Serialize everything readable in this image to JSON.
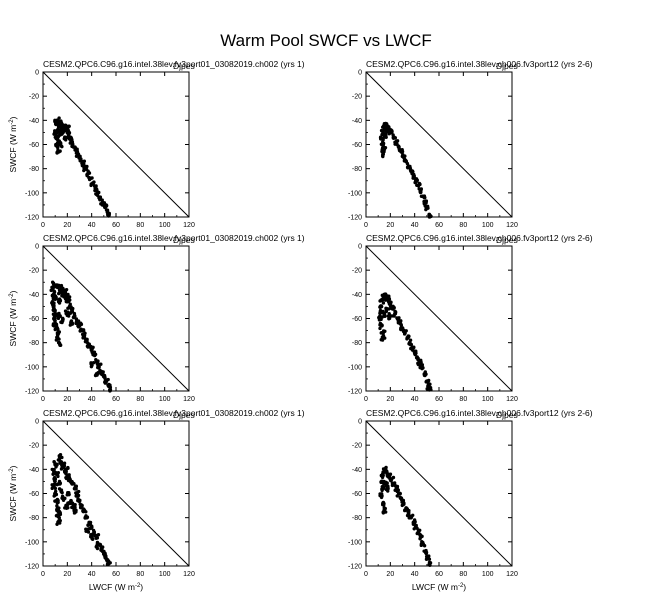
{
  "title": "Warm Pool SWCF vs LWCF",
  "axes": {
    "xlabel": "LWCF (W m",
    "xlabel_sup": "-2",
    "xlabel_end": ")",
    "ylabel": "SWCF (W m",
    "ylabel_sup": "-2",
    "ylabel_end": ")",
    "xticks": [
      "0",
      "20",
      "40",
      "60",
      "80",
      "100",
      "120"
    ],
    "yticks": [
      "0",
      "-20",
      "-40",
      "-60",
      "-80",
      "-100",
      "-120"
    ]
  },
  "chart_data": [
    {
      "type": "scatter",
      "title": "CESM2.QPC6.C96.g16.intel.38lev.fv3port01_03082019.ch002 (yrs 1)",
      "overlap_label": "Djpes",
      "xlim": [
        0,
        120
      ],
      "ylim": [
        -120,
        0
      ],
      "cluster": "c1"
    },
    {
      "type": "scatter",
      "title": "CESM2.QPC6.C96.g16.intel.38lev.ch006.fv3port12 (yrs 2-6)",
      "overlap_label": "Djpes",
      "xlim": [
        0,
        120
      ],
      "ylim": [
        -120,
        0
      ],
      "cluster": "c2"
    },
    {
      "type": "scatter",
      "title": "CESM2.QPC6.C96.g16.intel.38lev.fv3port01_03082019.ch002 (yrs 1)",
      "overlap_label": "Djpes",
      "xlim": [
        0,
        120
      ],
      "ylim": [
        -120,
        0
      ],
      "cluster": "c3"
    },
    {
      "type": "scatter",
      "title": "CESM2.QPC6.C96.g16.intel.38lev.ch006.fv3port12 (yrs 2-6)",
      "overlap_label": "Djpes",
      "xlim": [
        0,
        120
      ],
      "ylim": [
        -120,
        0
      ],
      "cluster": "c4"
    },
    {
      "type": "scatter",
      "title": "CESM2.QPC6.C96.g16.intel.38lev.fv3port01_03082019.ch002 (yrs 1)",
      "overlap_label": "Djpes",
      "xlim": [
        0,
        120
      ],
      "ylim": [
        -120,
        0
      ],
      "cluster": "c5"
    },
    {
      "type": "scatter",
      "title": "CESM2.QPC6.C96.g16.intel.38lev.ch006.fv3port12 (yrs 2-6)",
      "overlap_label": "Djpes",
      "xlim": [
        0,
        120
      ],
      "ylim": [
        -120,
        0
      ],
      "cluster": "c6"
    }
  ],
  "clusters": {
    "c1": [
      [
        12,
        -40
      ],
      [
        11,
        -42
      ],
      [
        13,
        -44
      ],
      [
        12,
        -48
      ],
      [
        10,
        -50
      ],
      [
        11,
        -55
      ],
      [
        13,
        -58
      ],
      [
        12,
        -62
      ],
      [
        14,
        -60
      ],
      [
        15,
        -46
      ],
      [
        16,
        -44
      ],
      [
        17,
        -45
      ],
      [
        18,
        -48
      ],
      [
        19,
        -46
      ],
      [
        20,
        -50
      ],
      [
        21,
        -52
      ],
      [
        22,
        -55
      ],
      [
        24,
        -58
      ],
      [
        25,
        -62
      ],
      [
        27,
        -64
      ],
      [
        29,
        -68
      ],
      [
        31,
        -72
      ],
      [
        33,
        -76
      ],
      [
        35,
        -80
      ],
      [
        37,
        -84
      ],
      [
        39,
        -88
      ],
      [
        41,
        -92
      ],
      [
        43,
        -96
      ],
      [
        45,
        -100
      ],
      [
        47,
        -104
      ],
      [
        49,
        -108
      ],
      [
        51,
        -112
      ],
      [
        53,
        -116
      ],
      [
        54,
        -119
      ],
      [
        14,
        -52
      ],
      [
        13,
        -66
      ],
      [
        15,
        -42
      ],
      [
        16,
        -50
      ],
      [
        18,
        -54
      ],
      [
        20,
        -46
      ]
    ],
    "c2": [
      [
        14,
        -50
      ],
      [
        13,
        -55
      ],
      [
        14,
        -60
      ],
      [
        15,
        -64
      ],
      [
        14,
        -68
      ],
      [
        15,
        -46
      ],
      [
        16,
        -44
      ],
      [
        17,
        -45
      ],
      [
        19,
        -47
      ],
      [
        21,
        -50
      ],
      [
        23,
        -54
      ],
      [
        25,
        -58
      ],
      [
        27,
        -62
      ],
      [
        29,
        -66
      ],
      [
        31,
        -70
      ],
      [
        33,
        -74
      ],
      [
        35,
        -78
      ],
      [
        37,
        -82
      ],
      [
        39,
        -86
      ],
      [
        41,
        -90
      ],
      [
        43,
        -94
      ],
      [
        45,
        -98
      ],
      [
        47,
        -103
      ],
      [
        49,
        -108
      ],
      [
        50,
        -112
      ],
      [
        52,
        -118
      ],
      [
        16,
        -52
      ],
      [
        18,
        -49
      ],
      [
        14,
        -65
      ]
    ],
    "c3": [
      [
        9,
        -32
      ],
      [
        8,
        -36
      ],
      [
        9,
        -40
      ],
      [
        10,
        -44
      ],
      [
        8,
        -48
      ],
      [
        9,
        -52
      ],
      [
        10,
        -56
      ],
      [
        9,
        -60
      ],
      [
        10,
        -64
      ],
      [
        11,
        -68
      ],
      [
        12,
        -72
      ],
      [
        12,
        -76
      ],
      [
        13,
        -80
      ],
      [
        14,
        -38
      ],
      [
        15,
        -34
      ],
      [
        16,
        -36
      ],
      [
        17,
        -40
      ],
      [
        18,
        -38
      ],
      [
        19,
        -42
      ],
      [
        20,
        -46
      ],
      [
        21,
        -44
      ],
      [
        22,
        -50
      ],
      [
        24,
        -54
      ],
      [
        26,
        -58
      ],
      [
        28,
        -62
      ],
      [
        30,
        -66
      ],
      [
        32,
        -70
      ],
      [
        34,
        -74
      ],
      [
        36,
        -78
      ],
      [
        38,
        -82
      ],
      [
        40,
        -86
      ],
      [
        42,
        -90
      ],
      [
        44,
        -96
      ],
      [
        46,
        -100
      ],
      [
        48,
        -104
      ],
      [
        50,
        -108
      ],
      [
        52,
        -112
      ],
      [
        54,
        -116
      ],
      [
        55,
        -119
      ],
      [
        12,
        -34
      ],
      [
        13,
        -46
      ],
      [
        14,
        -58
      ],
      [
        16,
        -62
      ],
      [
        20,
        -56
      ],
      [
        24,
        -64
      ],
      [
        44,
        -106
      ],
      [
        40,
        -98
      ]
    ],
    "c4": [
      [
        13,
        -45
      ],
      [
        12,
        -50
      ],
      [
        13,
        -55
      ],
      [
        12,
        -60
      ],
      [
        13,
        -66
      ],
      [
        14,
        -72
      ],
      [
        14,
        -76
      ],
      [
        15,
        -42
      ],
      [
        16,
        -40
      ],
      [
        17,
        -44
      ],
      [
        18,
        -42
      ],
      [
        19,
        -46
      ],
      [
        20,
        -48
      ],
      [
        22,
        -52
      ],
      [
        24,
        -56
      ],
      [
        26,
        -60
      ],
      [
        28,
        -64
      ],
      [
        30,
        -68
      ],
      [
        32,
        -72
      ],
      [
        34,
        -76
      ],
      [
        36,
        -80
      ],
      [
        38,
        -84
      ],
      [
        40,
        -88
      ],
      [
        42,
        -92
      ],
      [
        44,
        -96
      ],
      [
        46,
        -100
      ],
      [
        48,
        -106
      ],
      [
        50,
        -112
      ],
      [
        51,
        -116
      ],
      [
        52,
        -119
      ],
      [
        15,
        -56
      ],
      [
        17,
        -52
      ],
      [
        20,
        -58
      ]
    ],
    "c5": [
      [
        10,
        -36
      ],
      [
        9,
        -42
      ],
      [
        10,
        -48
      ],
      [
        9,
        -54
      ],
      [
        10,
        -60
      ],
      [
        11,
        -66
      ],
      [
        12,
        -72
      ],
      [
        12,
        -78
      ],
      [
        13,
        -84
      ],
      [
        14,
        -30
      ],
      [
        15,
        -34
      ],
      [
        16,
        -38
      ],
      [
        17,
        -36
      ],
      [
        18,
        -42
      ],
      [
        19,
        -40
      ],
      [
        20,
        -46
      ],
      [
        22,
        -48
      ],
      [
        24,
        -52
      ],
      [
        26,
        -56
      ],
      [
        28,
        -60
      ],
      [
        30,
        -66
      ],
      [
        32,
        -70
      ],
      [
        34,
        -74
      ],
      [
        36,
        -80
      ],
      [
        38,
        -84
      ],
      [
        40,
        -88
      ],
      [
        42,
        -92
      ],
      [
        44,
        -96
      ],
      [
        46,
        -102
      ],
      [
        48,
        -106
      ],
      [
        50,
        -110
      ],
      [
        52,
        -114
      ],
      [
        54,
        -118
      ],
      [
        11,
        -44
      ],
      [
        13,
        -52
      ],
      [
        15,
        -58
      ],
      [
        17,
        -64
      ],
      [
        19,
        -70
      ],
      [
        21,
        -60
      ],
      [
        23,
        -66
      ],
      [
        25,
        -70
      ],
      [
        27,
        -74
      ],
      [
        36,
        -90
      ],
      [
        40,
        -96
      ],
      [
        44,
        -104
      ],
      [
        14,
        -76
      ]
    ],
    "c6": [
      [
        14,
        -45
      ],
      [
        13,
        -50
      ],
      [
        14,
        -56
      ],
      [
        13,
        -62
      ],
      [
        14,
        -68
      ],
      [
        15,
        -74
      ],
      [
        15,
        -42
      ],
      [
        16,
        -40
      ],
      [
        17,
        -42
      ],
      [
        18,
        -44
      ],
      [
        19,
        -46
      ],
      [
        21,
        -48
      ],
      [
        23,
        -52
      ],
      [
        25,
        -56
      ],
      [
        27,
        -60
      ],
      [
        29,
        -64
      ],
      [
        31,
        -68
      ],
      [
        33,
        -72
      ],
      [
        35,
        -76
      ],
      [
        37,
        -80
      ],
      [
        39,
        -84
      ],
      [
        41,
        -88
      ],
      [
        43,
        -92
      ],
      [
        45,
        -96
      ],
      [
        47,
        -102
      ],
      [
        49,
        -108
      ],
      [
        51,
        -114
      ],
      [
        52,
        -119
      ],
      [
        16,
        -52
      ],
      [
        18,
        -56
      ]
    ]
  }
}
